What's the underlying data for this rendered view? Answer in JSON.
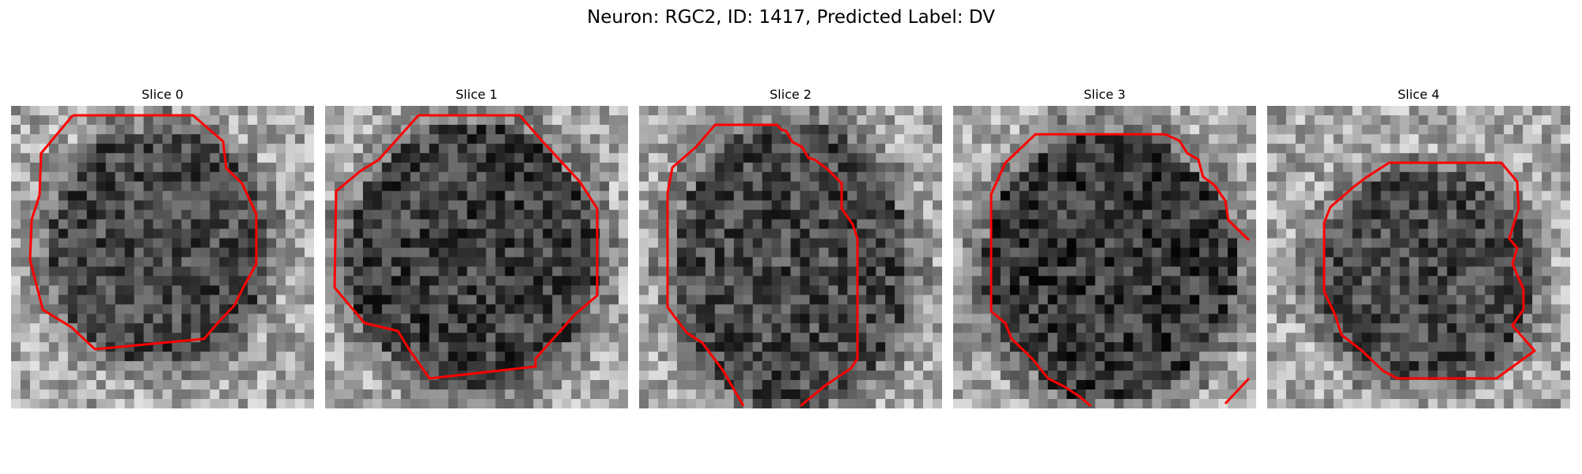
{
  "figure": {
    "title": "Neuron: RGC2, ID: 1417, Predicted Label: DV"
  },
  "panels": [
    {
      "title": "Slice 0"
    },
    {
      "title": "Slice 1"
    },
    {
      "title": "Slice 2"
    },
    {
      "title": "Slice 3"
    },
    {
      "title": "Slice 4"
    }
  ],
  "colors": {
    "contour": "#ff0000"
  }
}
